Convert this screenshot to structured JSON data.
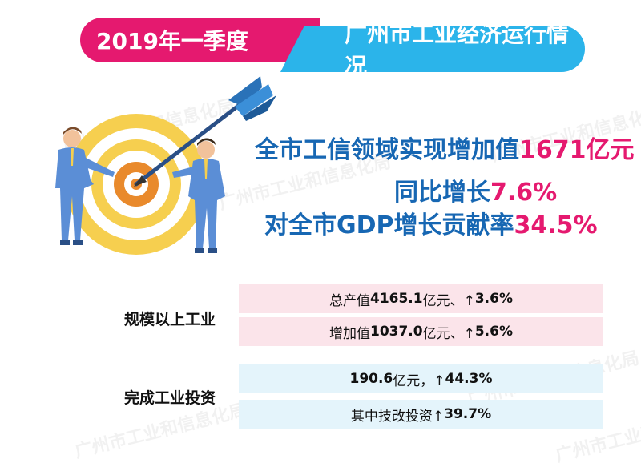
{
  "banner": {
    "left": "2019年一季度",
    "right": "广州市工业经济运行情况"
  },
  "watermark": "广州市工业和信息化局",
  "headline": {
    "line1_text": "全市工信领域实现增加值",
    "line1_value": "1671亿元",
    "line2_text": "同比增长",
    "line2_value": "7.6%",
    "line3_text": "对全市GDP增长贡献率",
    "line3_value": "34.5%"
  },
  "industry": {
    "label": "规模以上工业",
    "rows": [
      {
        "prefix": "总产值",
        "value": "4165.1",
        "suffix": "亿元、↑",
        "rate": "3.6%"
      },
      {
        "prefix": "增加值",
        "value": "1037.0",
        "suffix": "亿元、↑",
        "rate": "5.6%"
      }
    ]
  },
  "investment": {
    "label": "完成工业投资",
    "rows": [
      {
        "prefix": "",
        "value": "190.6",
        "suffix": "亿元，↑",
        "rate": "44.3%"
      },
      {
        "prefix": "其中技改投资↑",
        "value": "",
        "suffix": "",
        "rate": "39.7%"
      }
    ]
  },
  "colors": {
    "pink": "#e5196f",
    "blue": "#2bb4ea",
    "text_blue": "#1767b3",
    "row_pink": "#fbe4ea",
    "row_blue": "#e4f4fb"
  },
  "icons": [
    "target-icon",
    "dart-icon",
    "businessman-icon"
  ]
}
